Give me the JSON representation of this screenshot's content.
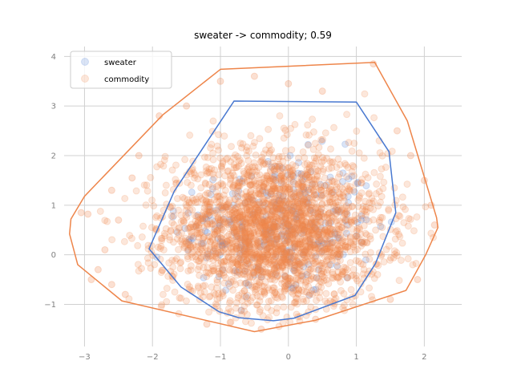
{
  "chart_data": {
    "type": "scatter",
    "title": "sweater -> commodity; 0.59",
    "xlabel": "",
    "ylabel": "",
    "xlim": [
      -3.3,
      2.55
    ],
    "ylim": [
      -1.85,
      4.2
    ],
    "xticks": [
      -3,
      -2,
      -1,
      0,
      1,
      2
    ],
    "yticks": [
      -1,
      0,
      1,
      2,
      3,
      4
    ],
    "grid": true,
    "legend": {
      "location": "top-left",
      "entries": [
        "sweater",
        "commodity"
      ]
    },
    "series": [
      {
        "name": "sweater",
        "color": "#4878d0",
        "hull": [
          [
            -0.8,
            3.1
          ],
          [
            1.0,
            3.08
          ],
          [
            1.48,
            2.08
          ],
          [
            1.58,
            0.85
          ],
          [
            1.28,
            -0.18
          ],
          [
            0.98,
            -0.82
          ],
          [
            0.08,
            -1.28
          ],
          [
            -0.22,
            -1.33
          ],
          [
            -0.73,
            -1.27
          ],
          [
            -1.02,
            -1.15
          ],
          [
            -1.58,
            -0.65
          ],
          [
            -2.05,
            0.12
          ],
          [
            -1.68,
            1.28
          ]
        ],
        "cluster": {
          "center": [
            -0.15,
            0.55
          ],
          "spread": [
            0.72,
            0.72
          ]
        }
      },
      {
        "name": "commodity",
        "color": "#ee854a",
        "hull": [
          [
            -1.0,
            3.74
          ],
          [
            1.27,
            3.88
          ],
          [
            1.75,
            2.7
          ],
          [
            2.18,
            0.75
          ],
          [
            2.2,
            0.55
          ],
          [
            2.02,
            0.0
          ],
          [
            1.73,
            -0.72
          ],
          [
            0.4,
            -1.32
          ],
          [
            -0.5,
            -1.55
          ],
          [
            -2.45,
            -0.93
          ],
          [
            -3.1,
            -0.2
          ],
          [
            -3.22,
            0.42
          ],
          [
            -3.2,
            0.72
          ],
          [
            -3.0,
            1.18
          ],
          [
            -1.85,
            2.82
          ]
        ],
        "cluster": {
          "center": [
            -0.2,
            0.5
          ],
          "spread": [
            0.8,
            0.8
          ]
        },
        "outliers": [
          [
            -3.05,
            0.85
          ],
          [
            -2.95,
            0.82
          ],
          [
            -2.6,
            1.3
          ],
          [
            -2.7,
            0.1
          ],
          [
            -2.8,
            -0.3
          ],
          [
            -2.5,
            0.7
          ],
          [
            -2.9,
            -0.5
          ],
          [
            -2.3,
            1.55
          ],
          [
            -2.2,
            2.0
          ],
          [
            -1.9,
            2.8
          ],
          [
            -1.5,
            3.0
          ],
          [
            -1.0,
            3.5
          ],
          [
            -0.5,
            3.6
          ],
          [
            0.0,
            3.45
          ],
          [
            0.5,
            3.3
          ],
          [
            1.25,
            3.85
          ],
          [
            1.6,
            2.5
          ],
          [
            1.8,
            2.0
          ],
          [
            2.0,
            1.5
          ],
          [
            2.1,
            1.0
          ],
          [
            2.15,
            0.6
          ],
          [
            1.9,
            -0.5
          ],
          [
            1.5,
            -0.9
          ],
          [
            -2.4,
            -0.8
          ],
          [
            -2.6,
            -0.6
          ],
          [
            -1.2,
            -1.4
          ],
          [
            -0.4,
            -1.5
          ],
          [
            0.4,
            -1.3
          ]
        ]
      }
    ]
  }
}
